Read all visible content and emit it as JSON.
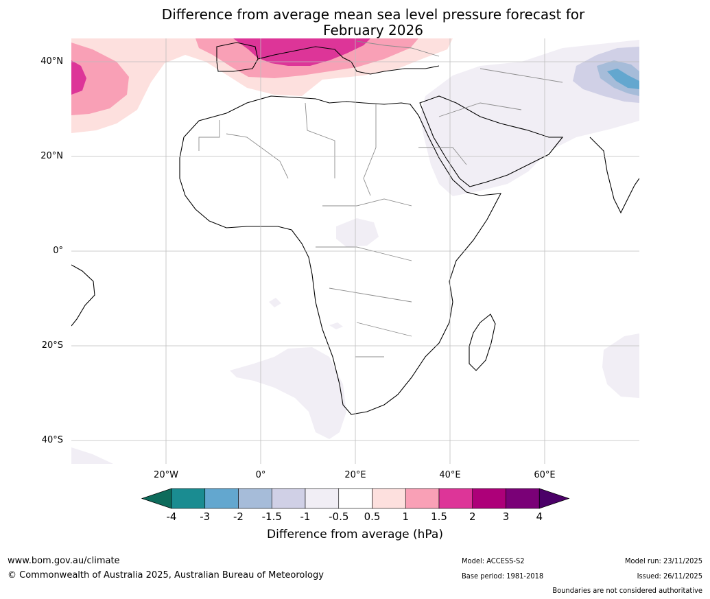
{
  "title": {
    "line1": "Difference from average mean sea level pressure forecast for",
    "line2": "February 2026"
  },
  "map": {
    "lat_labels": [
      "40°N",
      "20°N",
      "0°",
      "20°S",
      "40°S"
    ],
    "lon_labels": [
      "20°W",
      "0°",
      "20°E",
      "40°E",
      "60°E"
    ],
    "region": "Africa, Europe and Middle East"
  },
  "colorbar": {
    "title": "Difference from average (hPa)",
    "ticks": [
      "-4",
      "-3",
      "-2",
      "-1.5",
      "-1",
      "-0.5",
      "0.5",
      "1",
      "1.5",
      "2",
      "3",
      "4"
    ],
    "colors": [
      "#1a8c91",
      "#63a7cf",
      "#a6bcd9",
      "#d0d0e6",
      "#f1eef5",
      "#ffffff",
      "#fde0de",
      "#f9a0b6",
      "#dd3598",
      "#ad0079",
      "#7a0177"
    ],
    "under_color": "#0d6b5b",
    "over_color": "#4b0068"
  },
  "footer": {
    "website": "www.bom.gov.au/climate",
    "copyright": "© Commonwealth of Australia 2025, Australian Bureau of Meteorology",
    "model": "Model: ACCESS-S2",
    "base_period": "Base period: 1981-2018",
    "model_run": "Model run: 23/11/2025",
    "issued": "Issued: 26/11/2025",
    "disclaimer": "Boundaries are not considered authoritative"
  }
}
